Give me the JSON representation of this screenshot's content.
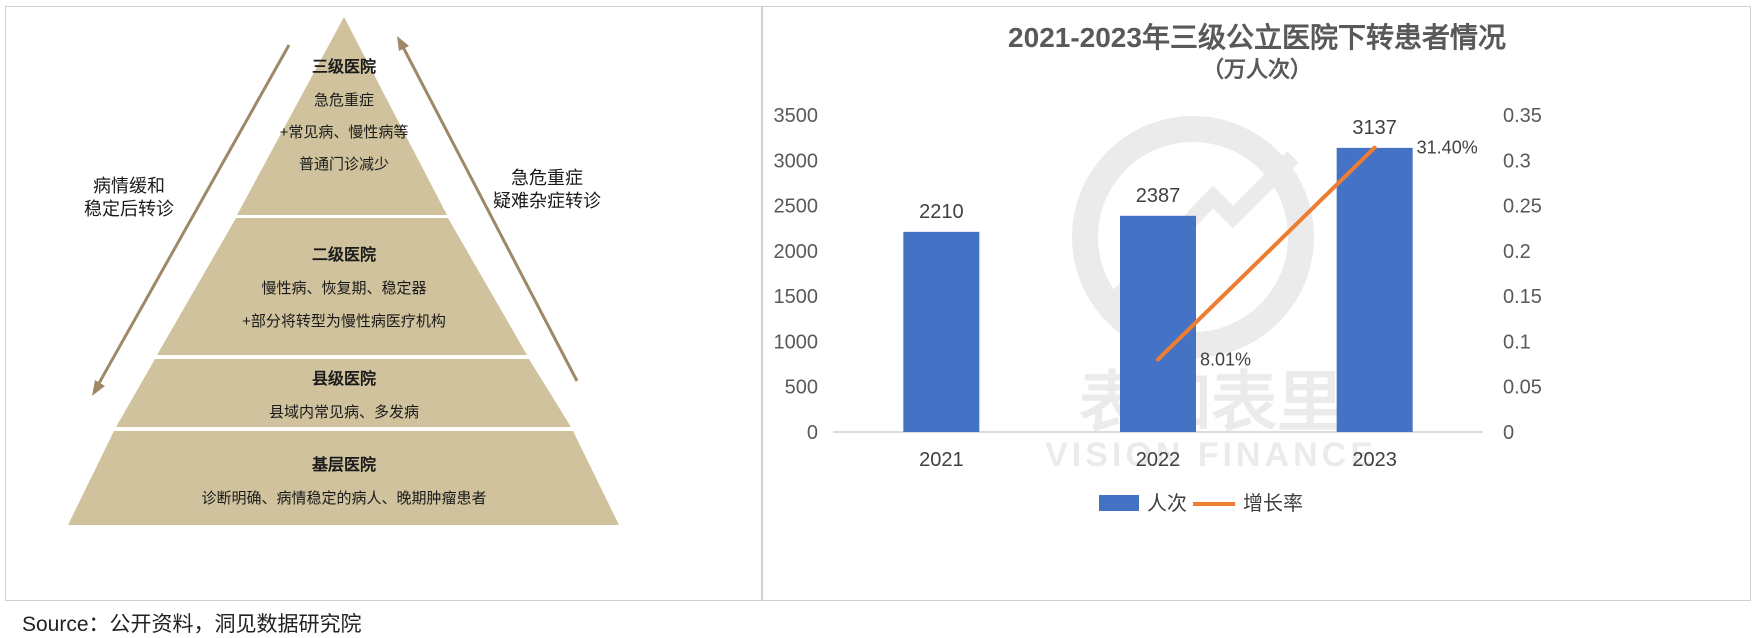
{
  "pyramid": {
    "tiers": [
      {
        "name": "三级医院",
        "lines": [
          "急危重症",
          "+常见病、慢性病等",
          "普通门诊减少"
        ]
      },
      {
        "name": "二级医院",
        "lines": [
          "慢性病、恢复期、稳定器",
          "+部分将转型为慢性病医疗机构"
        ]
      },
      {
        "name": "县级医院",
        "lines": [
          "县域内常见病、多发病"
        ]
      },
      {
        "name": "基层医院",
        "lines": [
          "诊断明确、病情稳定的病人、晚期肿瘤患者"
        ]
      }
    ],
    "left_label": [
      "病情缓和",
      "稳定后转诊"
    ],
    "right_label": [
      "急危重症",
      "疑难杂症转诊"
    ],
    "colors": {
      "tier_fill": "#cfc29c",
      "arrow": "#9e8868"
    }
  },
  "chart_data": {
    "type": "bar",
    "title": "2021-2023年三级公立医院下转患者情况",
    "subtitle": "（万人次）",
    "categories": [
      "2021",
      "2022",
      "2023"
    ],
    "series": [
      {
        "name": "人次",
        "type": "bar",
        "axis": "left",
        "values": [
          2210,
          2387,
          3137
        ],
        "labels": [
          "2210",
          "2387",
          "3137"
        ],
        "color": "#4472c4"
      },
      {
        "name": "增长率",
        "type": "line",
        "axis": "right",
        "values": [
          null,
          0.0801,
          0.314
        ],
        "labels": [
          "",
          "8.01%",
          "31.40%"
        ],
        "color": "#ed7d31"
      }
    ],
    "y_left": {
      "min": 0,
      "max": 3500,
      "ticks": [
        "0",
        "500",
        "1000",
        "1500",
        "2000",
        "2500",
        "3000",
        "3500"
      ]
    },
    "y_right": {
      "min": 0,
      "max": 0.35,
      "ticks": [
        "0",
        "0.05",
        "0.1",
        "0.15",
        "0.2",
        "0.25",
        "0.3",
        "0.35"
      ]
    },
    "grid": false,
    "legend": "bottom"
  },
  "watermark": {
    "text_cn": "表如表里",
    "text_en": "VISION FINANCE"
  },
  "source": "Source：公开资料，洞见数据研究院"
}
